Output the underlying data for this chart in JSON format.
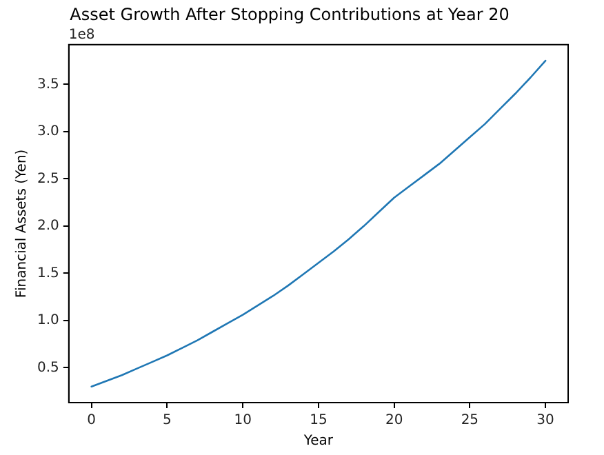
{
  "chart_data": {
    "type": "line",
    "title": "Asset Growth After Stopping Contributions at Year 20",
    "xlabel": "Year",
    "ylabel": "Financial Assets (Yen)",
    "annotations": [
      "1e8"
    ],
    "x": [
      0,
      1,
      2,
      3,
      4,
      5,
      6,
      7,
      8,
      9,
      10,
      11,
      12,
      13,
      14,
      15,
      16,
      17,
      18,
      19,
      20,
      21,
      22,
      23,
      24,
      25,
      26,
      27,
      28,
      29,
      30
    ],
    "series": [
      {
        "color": "#1f77b4",
        "values": [
          0.3,
          0.36,
          0.42,
          0.49,
          0.56,
          0.63,
          0.71,
          0.79,
          0.88,
          0.97,
          1.06,
          1.16,
          1.26,
          1.37,
          1.49,
          1.61,
          1.73,
          1.86,
          2.0,
          2.15,
          2.3,
          2.42,
          2.54,
          2.66,
          2.8,
          2.94,
          3.08,
          3.24,
          3.4,
          3.57,
          3.75
        ]
      }
    ],
    "xlim": [
      -1.5,
      31.5
    ],
    "xticks": [
      0,
      5,
      10,
      15,
      20,
      25,
      30
    ],
    "ylim": [
      0.13,
      3.92
    ],
    "yticks": [
      0.5,
      {
        "value": 1,
        "label": "1.0"
      },
      1.5,
      {
        "value": 2,
        "label": "2.0"
      },
      2.5,
      {
        "value": 3,
        "label": "3.0"
      },
      3.5
    ],
    "grid": false,
    "legend": false,
    "marker": "none",
    "line_style": "solid"
  }
}
